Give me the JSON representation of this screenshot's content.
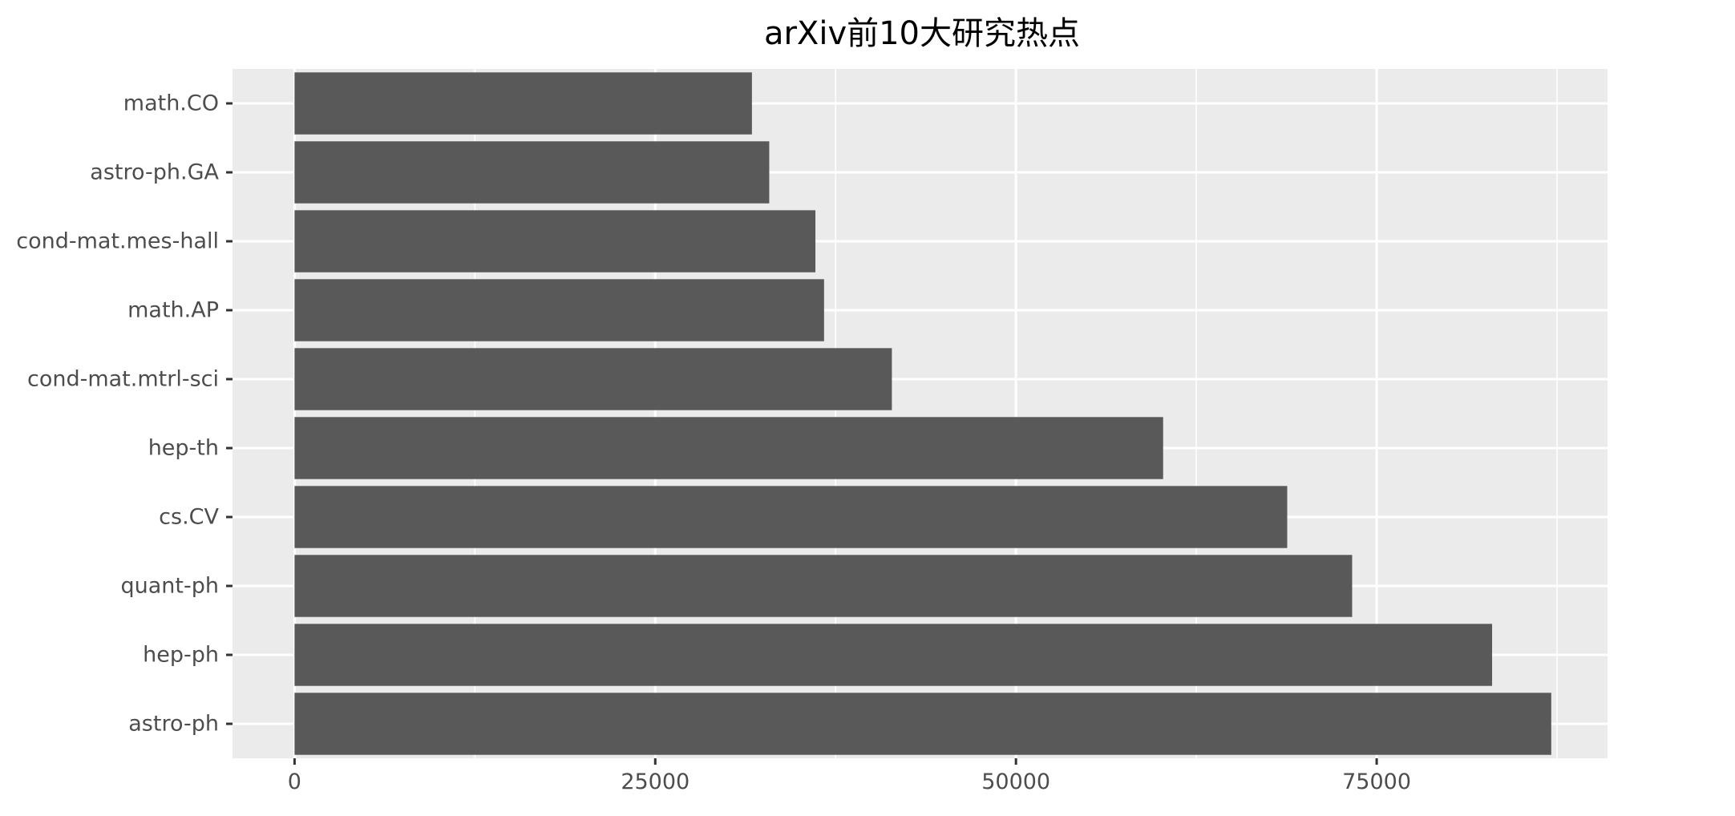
{
  "chart_data": {
    "type": "bar",
    "orientation": "horizontal",
    "title": "arXiv前10大研究热点",
    "xlabel": "",
    "ylabel": "",
    "categories": [
      "math.CO",
      "astro-ph.GA",
      "cond-mat.mes-hall",
      "math.AP",
      "cond-mat.mtrl-sci",
      "hep-th",
      "cs.CV",
      "quant-ph",
      "hep-ph",
      "astro-ph"
    ],
    "values": [
      31700,
      32900,
      36100,
      36700,
      41400,
      60200,
      68800,
      73300,
      83000,
      87100
    ],
    "xlim": [
      -4300,
      91000
    ],
    "xticks": [
      0,
      25000,
      50000,
      75000
    ],
    "xtick_labels": [
      "0",
      "25000",
      "50000",
      "75000"
    ],
    "grid": true,
    "legend": "none",
    "colors": {
      "bar": "#595959",
      "panel": "#ebebeb",
      "grid": "#ffffff",
      "tick": "#333333",
      "tick_label": "#4d4d4d",
      "title": "#000000"
    }
  }
}
